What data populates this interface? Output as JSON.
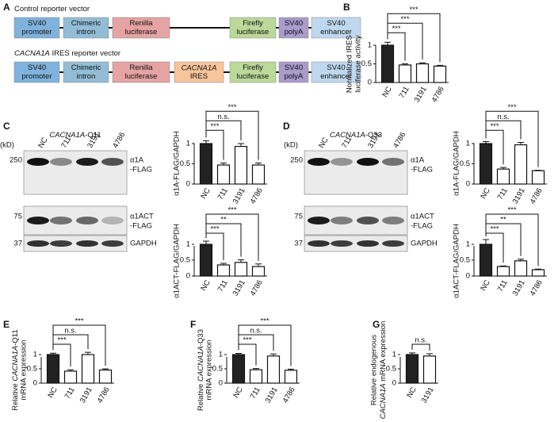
{
  "panel_labels": [
    "A",
    "B",
    "C",
    "D",
    "E",
    "F",
    "G"
  ],
  "vectors": [
    {
      "title": [
        {
          "text": "Control reporter vector"
        }
      ],
      "elements": [
        {
          "lines": [
            "SV40",
            "promoter"
          ],
          "color": "#7fb3dd"
        },
        {
          "lines": [
            "Chimeric",
            "intron"
          ],
          "color": "#93bdd6"
        },
        {
          "lines": [
            "Renilla",
            "luciferase"
          ],
          "color": "#e5a3a3"
        },
        {
          "lines": [
            "Firefly",
            "luciferase"
          ],
          "color": "#bcd89a"
        },
        {
          "lines": [
            "SV40",
            "polyA"
          ],
          "color": "#a99bcc"
        },
        {
          "lines": [
            "SV40",
            "enhancer"
          ],
          "color": "#bfd8ef"
        }
      ]
    },
    {
      "title": [
        {
          "text": "CACNA1A",
          "italic": true
        },
        {
          "text": " IRES reporter vector"
        }
      ],
      "elements": [
        {
          "lines": [
            "SV40",
            "promoter"
          ],
          "color": "#7fb3dd"
        },
        {
          "lines": [
            "Chimeric",
            "intron"
          ],
          "color": "#93bdd6"
        },
        {
          "lines": [
            "Renilla",
            "luciferase"
          ],
          "color": "#e5a3a3"
        },
        {
          "lines": [
            [
              {
                "text": "CACNA1A",
                "italic": true
              }
            ],
            "IRES"
          ],
          "color": "#f7c49c"
        },
        {
          "lines": [
            "Firefly",
            "luciferase"
          ],
          "color": "#bcd89a"
        },
        {
          "lines": [
            "SV40",
            "polyA"
          ],
          "color": "#a99bcc"
        },
        {
          "lines": [
            "SV40",
            "enhancer"
          ],
          "color": "#bfd8ef"
        }
      ]
    }
  ],
  "blots": [
    {
      "title": [
        {
          "text": "CACNA1A",
          "italic": true
        },
        {
          "text": "-Q11"
        }
      ],
      "unit": "(kD)",
      "lanes": [
        "NC",
        "711",
        "3191",
        "4786"
      ],
      "markers": [
        "250",
        "75",
        "37"
      ],
      "bands": [
        [
          "α1A",
          "-FLAG"
        ],
        [
          "α1ACT",
          "-FLAG"
        ],
        [
          "GAPDH"
        ]
      ]
    },
    {
      "title": [
        {
          "text": "CACNA1A",
          "italic": true
        },
        {
          "text": "-Q33"
        }
      ],
      "unit": "(kD)",
      "lanes": [
        "NC",
        "711",
        "3191",
        "4786"
      ],
      "markers": [
        "250",
        "75",
        "37"
      ],
      "bands": [
        [
          "α1A",
          "-FLAG"
        ],
        [
          "α1ACT",
          "-FLAG"
        ],
        [
          "GAPDH"
        ]
      ]
    }
  ],
  "chart_data": [
    {
      "type": "bar",
      "ylabel": [
        "Normalized IRES",
        "luciferase activity"
      ],
      "categories": [
        "NC",
        "711",
        "3191",
        "4786"
      ],
      "values": [
        1.0,
        0.47,
        0.5,
        0.44
      ],
      "errors": [
        0.08,
        0.03,
        0.03,
        0.02
      ],
      "colors": [
        "#222222",
        "#ffffff",
        "#ffffff",
        "#ffffff"
      ],
      "significance": [
        null,
        "***",
        "***",
        "***"
      ],
      "ylim": [
        0,
        1.25
      ],
      "yticks": [
        0,
        0.5,
        1
      ]
    },
    {
      "type": "bar",
      "ylabel": [
        "α1A-FLAG/GAPDH"
      ],
      "categories": [
        "NC",
        "711",
        "3191",
        "4786"
      ],
      "values": [
        1.0,
        0.47,
        0.93,
        0.47
      ],
      "errors": [
        0.07,
        0.05,
        0.07,
        0.05
      ],
      "colors": [
        "#222222",
        "#ffffff",
        "#ffffff",
        "#ffffff"
      ],
      "significance": [
        null,
        "***",
        "n.s.",
        "***"
      ],
      "ylim": [
        0,
        1.25
      ],
      "yticks": [
        0,
        0.5,
        1
      ]
    },
    {
      "type": "bar",
      "ylabel": [
        "α1ACT-FLAG/GAPDH"
      ],
      "categories": [
        "NC",
        "711",
        "3191",
        "4786"
      ],
      "values": [
        1.0,
        0.35,
        0.43,
        0.3
      ],
      "errors": [
        0.1,
        0.05,
        0.08,
        0.08
      ],
      "colors": [
        "#222222",
        "#ffffff",
        "#ffffff",
        "#ffffff"
      ],
      "significance": [
        null,
        "***",
        "**",
        "***"
      ],
      "ylim": [
        0,
        1.25
      ],
      "yticks": [
        0,
        0.5,
        1
      ]
    },
    {
      "type": "bar",
      "ylabel": [
        "α1A-FLAG/GAPDH"
      ],
      "categories": [
        "NC",
        "711",
        "3191",
        "4786"
      ],
      "values": [
        1.0,
        0.37,
        0.97,
        0.33
      ],
      "errors": [
        0.05,
        0.04,
        0.06,
        0.01
      ],
      "colors": [
        "#222222",
        "#ffffff",
        "#ffffff",
        "#ffffff"
      ],
      "significance": [
        null,
        "***",
        "n.s.",
        "***"
      ],
      "ylim": [
        0,
        1.25
      ],
      "yticks": [
        0,
        0.5,
        1
      ]
    },
    {
      "type": "bar",
      "ylabel": [
        "α1ACT-FLAG/GAPDH"
      ],
      "categories": [
        "NC",
        "711",
        "3191",
        "4786"
      ],
      "values": [
        1.0,
        0.3,
        0.48,
        0.2
      ],
      "errors": [
        0.15,
        0.02,
        0.05,
        0.02
      ],
      "colors": [
        "#222222",
        "#ffffff",
        "#ffffff",
        "#ffffff"
      ],
      "significance": [
        null,
        "***",
        "**",
        "***"
      ],
      "ylim": [
        0,
        1.25
      ],
      "yticks": [
        0,
        0.5,
        1
      ]
    },
    {
      "type": "bar",
      "ylabel": [
        [
          {
            "text": "Relative "
          },
          {
            "text": "CACNA1A",
            "italic": true
          },
          {
            "text": "-Q11"
          }
        ],
        "mRNA expression"
      ],
      "categories": [
        "NC",
        "711",
        "3191",
        "4786"
      ],
      "values": [
        1.0,
        0.42,
        1.0,
        0.46
      ],
      "errors": [
        0.05,
        0.05,
        0.08,
        0.04
      ],
      "colors": [
        "#222222",
        "#ffffff",
        "#ffffff",
        "#ffffff"
      ],
      "significance": [
        null,
        "***",
        "n.s.",
        "***"
      ],
      "ylim": [
        0,
        1.25
      ],
      "yticks": [
        0,
        0.5,
        1
      ]
    },
    {
      "type": "bar",
      "ylabel": [
        [
          {
            "text": "Relative "
          },
          {
            "text": "CACNA1A",
            "italic": true
          },
          {
            "text": "-Q33"
          }
        ],
        "mRNA expression"
      ],
      "categories": [
        "NC",
        "711",
        "3191",
        "4786"
      ],
      "values": [
        1.0,
        0.47,
        0.95,
        0.45
      ],
      "errors": [
        0.04,
        0.04,
        0.07,
        0.04
      ],
      "colors": [
        "#222222",
        "#ffffff",
        "#ffffff",
        "#ffffff"
      ],
      "significance": [
        null,
        "***",
        "n.s.",
        "***"
      ],
      "ylim": [
        0,
        1.25
      ],
      "yticks": [
        0,
        0.5,
        1
      ]
    },
    {
      "type": "bar",
      "ylabel": [
        "Relative endogenous",
        [
          {
            "text": "CACNA1A",
            "italic": true
          },
          {
            "text": " mRNA expression"
          }
        ]
      ],
      "categories": [
        "NC",
        "3191"
      ],
      "values": [
        1.0,
        0.95
      ],
      "errors": [
        0.06,
        0.08
      ],
      "colors": [
        "#222222",
        "#ffffff"
      ],
      "significance": [
        null,
        "n.s."
      ],
      "ylim": [
        0,
        1.25
      ],
      "yticks": [
        0,
        0.5,
        1
      ]
    }
  ]
}
